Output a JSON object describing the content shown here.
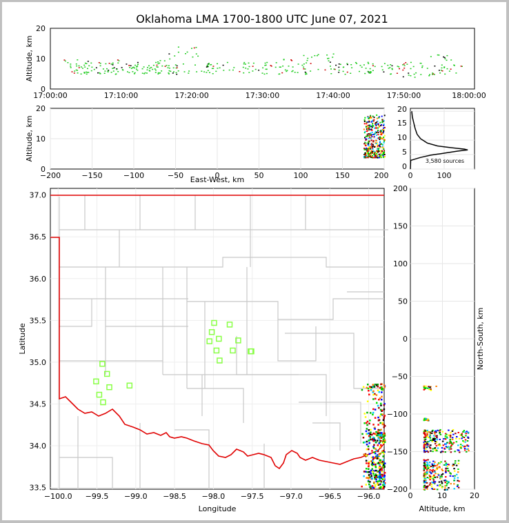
{
  "title": "Oklahoma LMA 1700-1800 UTC June 07, 2021",
  "colors": {
    "state_border": "#e00000",
    "county": "#c8c8c8",
    "station": "#88ff44",
    "grid": "#e6e6e6"
  },
  "panels": {
    "time_altitude": {
      "ylabel": "Altitude, km",
      "yticks": [
        "0",
        "10",
        "20"
      ],
      "xticks": [
        "17:00:00",
        "17:10:00",
        "17:20:00",
        "17:30:00",
        "17:40:00",
        "17:50:00",
        "18:00:00"
      ]
    },
    "ew_altitude": {
      "ylabel": "Altitude, km",
      "xlabel": "East-West, km",
      "yticks": [
        "0",
        "10",
        "20"
      ],
      "xticks": [
        "−200",
        "−150",
        "−100",
        "−50",
        "0",
        "50",
        "100",
        "150",
        "200"
      ]
    },
    "histogram": {
      "yticks": [
        "0",
        "5",
        "10",
        "15",
        "20"
      ],
      "xticks": [
        "0",
        "100"
      ],
      "annotation": "3,580 sources"
    },
    "map": {
      "xlabel": "Longitude",
      "ylabel": "Latitude",
      "xticks": [
        "−100.0",
        "−99.5",
        "−99.0",
        "−98.5",
        "−98.0",
        "−97.5",
        "−97.0",
        "−96.5",
        "−96.0"
      ],
      "yticks": [
        "33.5",
        "34.0",
        "34.5",
        "35.0",
        "35.5",
        "36.0",
        "36.5",
        "37.0"
      ]
    },
    "ns_altitude": {
      "xlabel": "Altitude, km",
      "ylabel": "North-South, km",
      "xticks": [
        "0",
        "10",
        "20"
      ],
      "yticks": [
        "−200",
        "−150",
        "−100",
        "−50",
        "0",
        "50",
        "100",
        "150",
        "200"
      ]
    }
  },
  "chart_data": [
    {
      "panel": "time_altitude",
      "type": "scatter",
      "x_range": [
        "17:00:00",
        "18:00:00"
      ],
      "ylim": [
        0,
        20
      ],
      "clusters": [
        {
          "t": "17:04:00",
          "alt": [
            5,
            10
          ]
        },
        {
          "t": "17:07:00",
          "alt": [
            5,
            9
          ]
        },
        {
          "t": "17:10:00",
          "alt": [
            5,
            10
          ]
        },
        {
          "t": "17:13:00",
          "alt": [
            5,
            9
          ]
        },
        {
          "t": "17:16:00",
          "alt": [
            5,
            10
          ]
        },
        {
          "t": "17:19:00",
          "alt": [
            5,
            14
          ]
        },
        {
          "t": "17:24:00",
          "alt": [
            5,
            9
          ]
        },
        {
          "t": "17:29:00",
          "alt": [
            5,
            9
          ]
        },
        {
          "t": "17:34:00",
          "alt": [
            5,
            10
          ]
        },
        {
          "t": "17:38:00",
          "alt": [
            5,
            12
          ]
        },
        {
          "t": "17:43:00",
          "alt": [
            5,
            9
          ]
        },
        {
          "t": "17:47:00",
          "alt": [
            5,
            9
          ]
        },
        {
          "t": "17:52:00",
          "alt": [
            4,
            9
          ]
        },
        {
          "t": "17:56:00",
          "alt": [
            5,
            12
          ]
        }
      ]
    },
    {
      "panel": "ew_altitude",
      "type": "scatter",
      "xlim": [
        -200,
        200
      ],
      "ylim": [
        0,
        20
      ],
      "clusters": [
        {
          "x": [
            175,
            200
          ],
          "alt": [
            4,
            18
          ]
        }
      ]
    },
    {
      "panel": "histogram",
      "type": "line",
      "xlim": [
        0,
        190
      ],
      "ylim": [
        0,
        21
      ],
      "total_sources": 3580,
      "profile": [
        [
          0,
          0
        ],
        [
          1,
          3
        ],
        [
          30,
          4
        ],
        [
          60,
          4.8
        ],
        [
          100,
          5.5
        ],
        [
          140,
          6.2
        ],
        [
          170,
          6.6
        ],
        [
          160,
          6.9
        ],
        [
          120,
          7.4
        ],
        [
          80,
          8
        ],
        [
          50,
          9
        ],
        [
          30,
          10.5
        ],
        [
          20,
          12
        ],
        [
          14,
          14
        ],
        [
          10,
          16
        ],
        [
          6,
          18
        ],
        [
          4,
          20
        ]
      ]
    },
    {
      "panel": "map",
      "type": "scatter",
      "xlim": [
        -100.1,
        -95.8
      ],
      "ylim": [
        33.48,
        37.08
      ],
      "stations": [
        [
          -97.99,
          35.47
        ],
        [
          -97.79,
          35.45
        ],
        [
          -98.02,
          35.36
        ],
        [
          -97.93,
          35.28
        ],
        [
          -98.05,
          35.25
        ],
        [
          -97.68,
          35.26
        ],
        [
          -97.96,
          35.14
        ],
        [
          -97.75,
          35.14
        ],
        [
          -97.52,
          35.13
        ],
        [
          -97.51,
          35.13
        ],
        [
          -97.92,
          35.02
        ],
        [
          -99.43,
          34.98
        ],
        [
          -99.37,
          34.86
        ],
        [
          -99.51,
          34.77
        ],
        [
          -99.34,
          34.7
        ],
        [
          -99.08,
          34.72
        ],
        [
          -99.47,
          34.61
        ],
        [
          -99.42,
          34.52
        ]
      ],
      "source_clusters": [
        {
          "lon": [
            -96.1,
            -95.8
          ],
          "lat": [
            33.5,
            34.75
          ]
        }
      ]
    },
    {
      "panel": "ns_altitude",
      "type": "scatter",
      "xlim": [
        0,
        20
      ],
      "ylim": [
        -200,
        200
      ],
      "clusters": [
        {
          "alt": [
            4,
            18
          ],
          "ns": [
            -150,
            -120
          ]
        },
        {
          "alt": [
            4,
            15
          ],
          "ns": [
            -200,
            -160
          ]
        },
        {
          "alt": [
            4,
            8
          ],
          "ns": [
            -68,
            -62
          ]
        },
        {
          "alt": [
            4,
            6
          ],
          "ns": [
            -108,
            -105
          ]
        }
      ]
    }
  ]
}
